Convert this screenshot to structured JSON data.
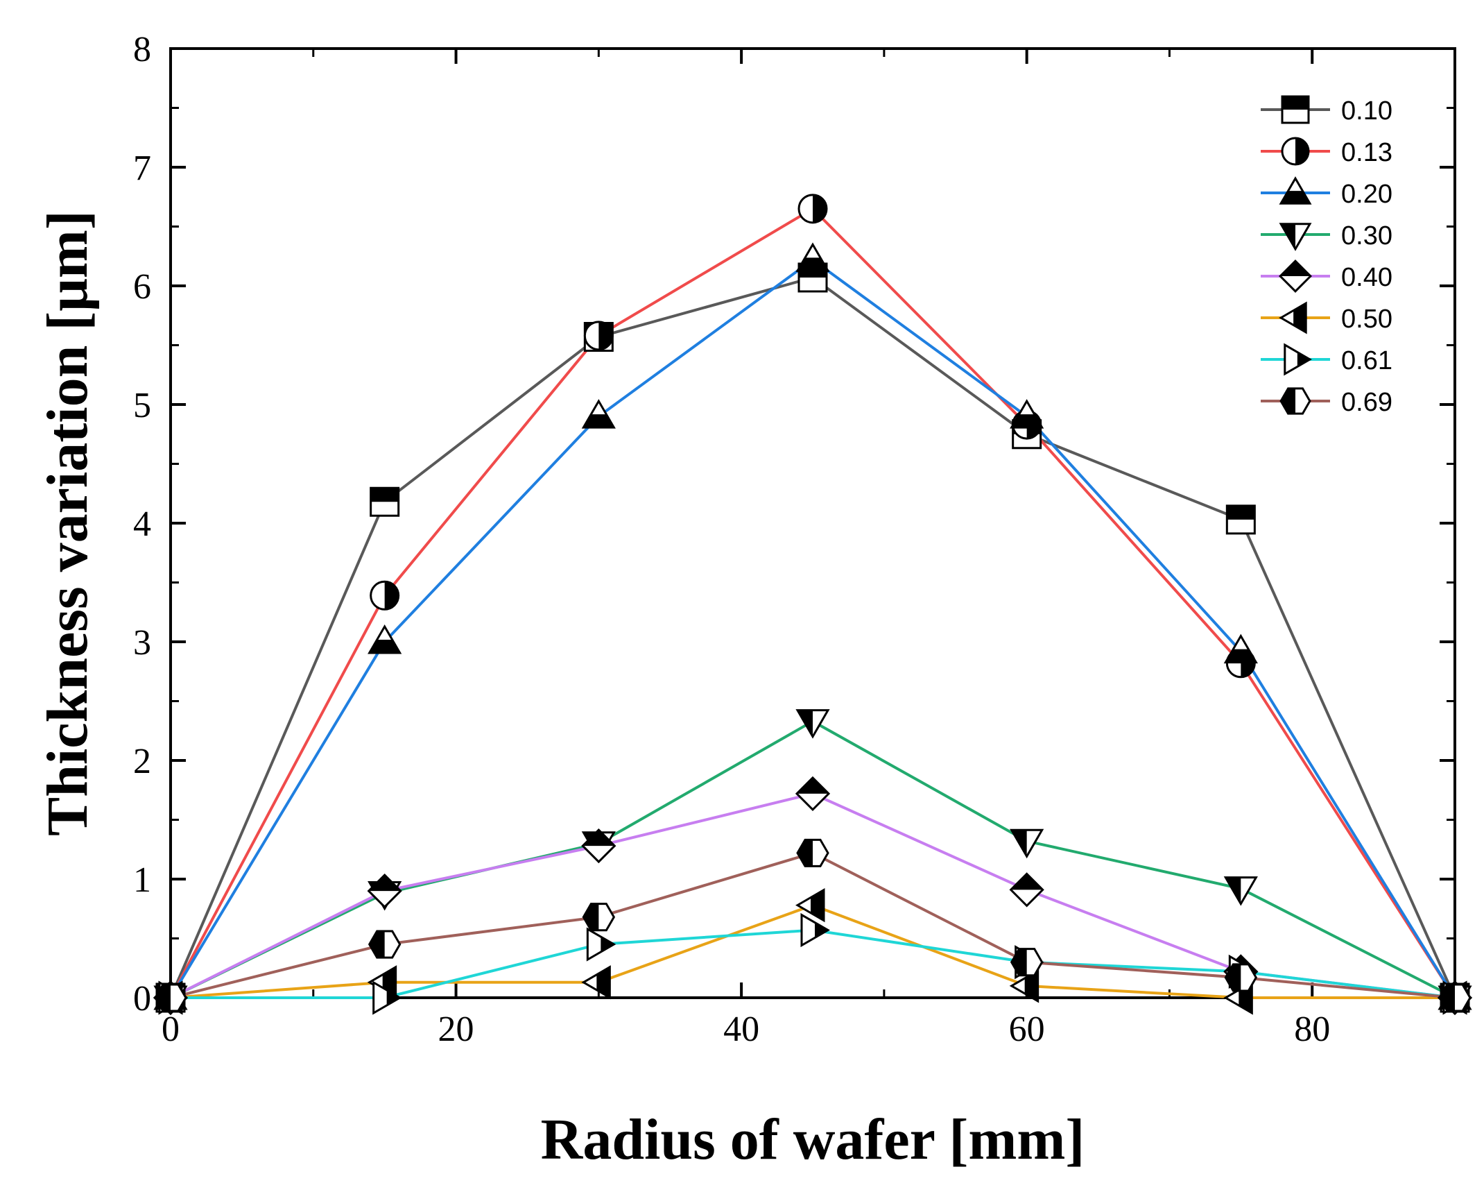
{
  "chart_data": {
    "type": "line",
    "title": "",
    "xlabel": "Radius of wafer [mm]",
    "ylabel": "Thickness variation [μm]",
    "xlim": [
      0,
      90
    ],
    "ylim": [
      0,
      8
    ],
    "xticks": [
      0,
      20,
      40,
      60,
      80
    ],
    "yticks": [
      0,
      1,
      2,
      3,
      4,
      5,
      6,
      7,
      8
    ],
    "x": [
      0,
      15,
      30,
      45,
      60,
      75,
      90
    ],
    "grid": false,
    "legend_position": "top-right",
    "series": [
      {
        "name": "0.10",
        "color": "#595959",
        "marker": "square-top",
        "values": [
          0,
          4.18,
          5.57,
          6.07,
          4.75,
          4.03,
          0
        ]
      },
      {
        "name": "0.13",
        "color": "#f04b4b",
        "marker": "circle-right",
        "values": [
          0,
          3.39,
          5.58,
          6.65,
          4.83,
          2.82,
          0
        ]
      },
      {
        "name": "0.20",
        "color": "#1f7fe0",
        "marker": "triangle-up-bottom",
        "values": [
          0,
          3.0,
          4.9,
          6.22,
          4.9,
          2.92,
          0
        ]
      },
      {
        "name": "0.30",
        "color": "#22aa6e",
        "marker": "triangle-down-left",
        "values": [
          0,
          0.88,
          1.3,
          2.33,
          1.32,
          0.92,
          0
        ]
      },
      {
        "name": "0.40",
        "color": "#c77ef0",
        "marker": "diamond-top",
        "values": [
          0,
          0.9,
          1.28,
          1.72,
          0.91,
          0.22,
          0
        ]
      },
      {
        "name": "0.50",
        "color": "#e8a317",
        "marker": "triangle-left-right",
        "values": [
          0,
          0.13,
          0.13,
          0.78,
          0.1,
          0.0,
          0
        ]
      },
      {
        "name": "0.61",
        "color": "#1fd6d6",
        "marker": "triangle-right-right",
        "values": [
          0,
          0.0,
          0.45,
          0.57,
          0.3,
          0.22,
          0
        ]
      },
      {
        "name": "0.69",
        "color": "#a0605a",
        "marker": "hexagon-left",
        "values": [
          0,
          0.45,
          0.68,
          1.22,
          0.3,
          0.17,
          0
        ]
      }
    ]
  }
}
